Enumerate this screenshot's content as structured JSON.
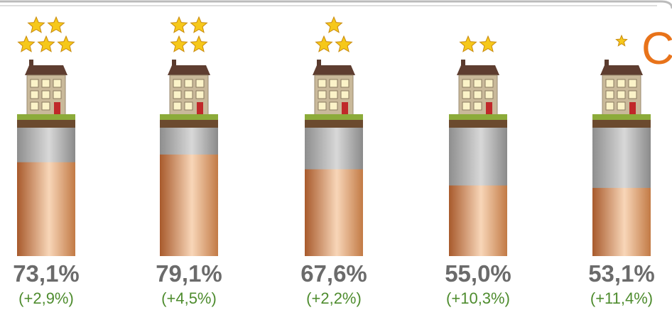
{
  "chart_data": {
    "type": "bar",
    "title": "C",
    "categories": [
      null,
      null,
      null,
      null,
      null
    ],
    "stars": [
      5,
      4,
      3,
      2,
      1
    ],
    "values": [
      73.1,
      79.1,
      67.6,
      55.0,
      53.1
    ],
    "value_labels": [
      "73,1%",
      "79,1%",
      "67,6%",
      "55,0%",
      "53,1%"
    ],
    "change_labels": [
      "(+2,9%)",
      "(+4,5%)",
      "(+2,2%)",
      "(+10,3%)",
      "(+11,4%)"
    ],
    "ylim": [
      0,
      100
    ],
    "color": "#d99a6c"
  }
}
